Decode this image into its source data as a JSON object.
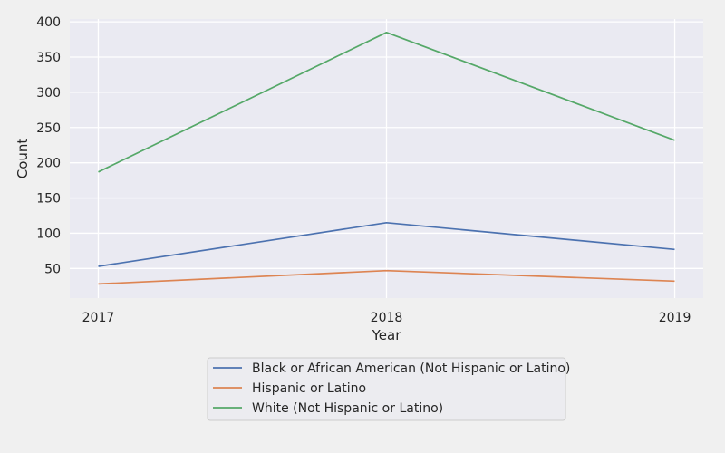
{
  "chart_data": {
    "type": "line",
    "title": "",
    "xlabel": "Year",
    "ylabel": "Count",
    "categories": [
      "2017",
      "2018",
      "2019"
    ],
    "yticks": [
      50,
      100,
      150,
      200,
      250,
      300,
      350,
      400
    ],
    "ylim": [
      8,
      404
    ],
    "grid": true,
    "legend_position": "bottom-center",
    "series": [
      {
        "name": "Black or African American (Not Hispanic or Latino)",
        "color": "#4c72b0",
        "values": [
          53,
          115,
          77
        ]
      },
      {
        "name": "Hispanic or Latino",
        "color": "#dd8452",
        "values": [
          28,
          47,
          32
        ]
      },
      {
        "name": "White (Not Hispanic or Latino)",
        "color": "#55a868",
        "values": [
          187,
          385,
          232
        ]
      }
    ]
  },
  "style": {
    "background": "#f0f0f0",
    "plot_background": "#eaeaf2",
    "grid_color": "#ffffff"
  }
}
